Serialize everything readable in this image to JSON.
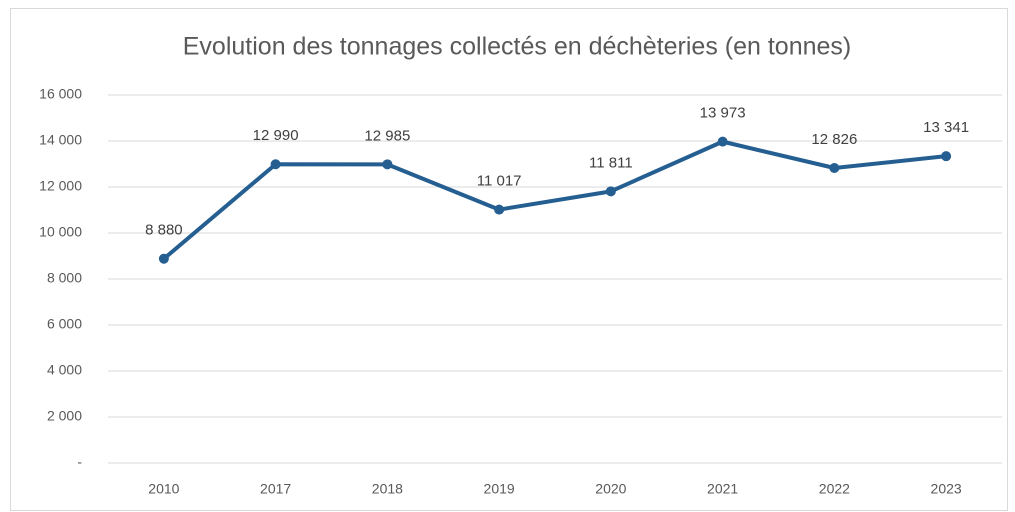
{
  "chart_data": {
    "type": "line",
    "title": "Evolution des tonnages collectés en déchèteries (en tonnes)",
    "categories": [
      "2010",
      "2017",
      "2018",
      "2019",
      "2020",
      "2021",
      "2022",
      "2023"
    ],
    "values": [
      8880,
      12990,
      12985,
      11017,
      11811,
      13973,
      12826,
      13341
    ],
    "value_labels": [
      "8 880",
      "12 990",
      "12 985",
      "11 017",
      "11 811",
      "13 973",
      "12 826",
      "13 341"
    ],
    "color": "#255e91",
    "ylim": [
      0,
      16000
    ],
    "yticks": [
      {
        "value": 0,
        "label": "-"
      },
      {
        "value": 2000,
        "label": "2 000"
      },
      {
        "value": 4000,
        "label": "4 000"
      },
      {
        "value": 6000,
        "label": "6 000"
      },
      {
        "value": 8000,
        "label": "8 000"
      },
      {
        "value": 10000,
        "label": "10 000"
      },
      {
        "value": 12000,
        "label": "12 000"
      },
      {
        "value": 14000,
        "label": "14 000"
      },
      {
        "value": 16000,
        "label": "16 000"
      }
    ],
    "grid": true
  }
}
